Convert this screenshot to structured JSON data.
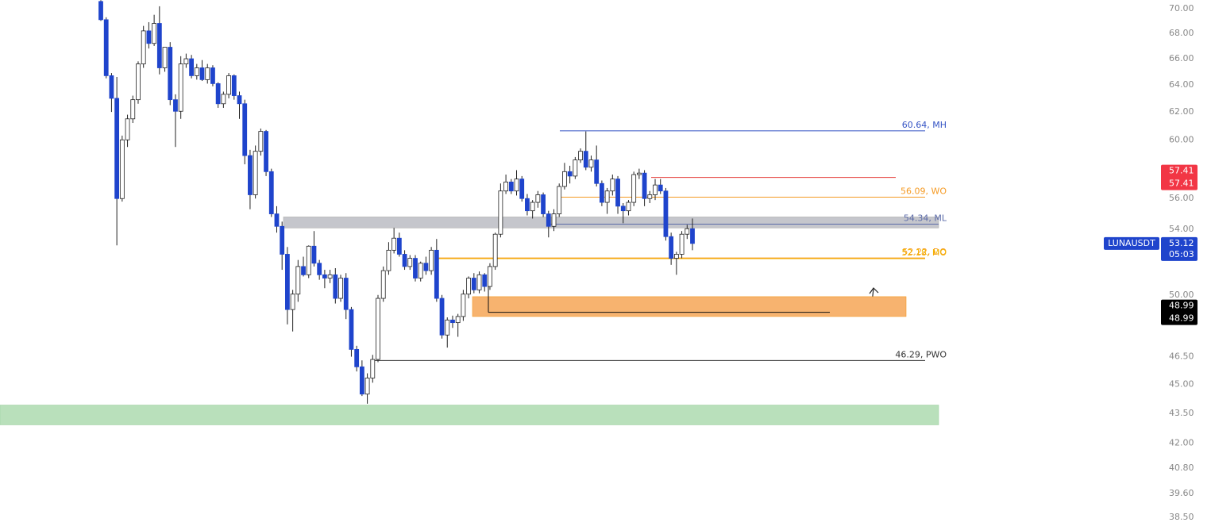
{
  "chart_data": {
    "type": "candlestick",
    "log_scale": true,
    "ylim": [
      37.93,
      70.72
    ],
    "yticks": [
      {
        "value": 70,
        "label": "70.00"
      },
      {
        "value": 68,
        "label": "68.00"
      },
      {
        "value": 66,
        "label": "66.00"
      },
      {
        "value": 64,
        "label": "64.00"
      },
      {
        "value": 62,
        "label": "62.00"
      },
      {
        "value": 60,
        "label": "60.00"
      },
      {
        "value": 56,
        "label": "56.00"
      },
      {
        "value": 54,
        "label": "54.00"
      },
      {
        "value": 50,
        "label": "50.00"
      },
      {
        "value": 46.5,
        "label": "46.50"
      },
      {
        "value": 45,
        "label": "45.00"
      },
      {
        "value": 43.5,
        "label": "43.50"
      },
      {
        "value": 42,
        "label": "42.00"
      },
      {
        "value": 40.8,
        "label": "40.80"
      },
      {
        "value": 39.6,
        "label": "39.60"
      },
      {
        "value": 38.5,
        "label": "38.50"
      }
    ],
    "up_color": "#ffffff",
    "down_color": "#1f44cc",
    "open": [
      70.6,
      69.1,
      64.7,
      63.0,
      56.0,
      60.0,
      61.5,
      62.9,
      65.6,
      68.2,
      67.2,
      68.8,
      65.3,
      66.9,
      62.9,
      62.05,
      65.6,
      66.0,
      64.7,
      65.3,
      64.4,
      65.3,
      64.1,
      62.6,
      63.3,
      64.7,
      63.2,
      62.6,
      58.9,
      56.25,
      59.2,
      60.6,
      57.8,
      55.0,
      54.2,
      52.45,
      49.15,
      50.05,
      51.7,
      51.2,
      52.95,
      51.9,
      51.2,
      51.0,
      51.2,
      49.8,
      51.0,
      49.15,
      46.9,
      45.95,
      44.5,
      45.35,
      46.35,
      49.8,
      51.45,
      52.7,
      53.45,
      52.45,
      51.7,
      52.2,
      51.0,
      51.9,
      51.45,
      52.7,
      49.8,
      47.7,
      48.55,
      48.4,
      48.75,
      50.05,
      51.0,
      50.3,
      51.2,
      50.5,
      51.7,
      53.7,
      56.5,
      57.1,
      56.5,
      57.3,
      56.0,
      55.2,
      55.75,
      56.25,
      55.0,
      54.2,
      55.0,
      56.8,
      57.8,
      57.5,
      58.6,
      59.2,
      58.1,
      58.6,
      57.0,
      55.75,
      56.5,
      57.3,
      55.5,
      55.2,
      55.75,
      57.6,
      57.7,
      56.0,
      56.25,
      56.9,
      56.5,
      53.55,
      52.2,
      52.45,
      53.7,
      54.05
    ],
    "high": [
      70.7,
      69.3,
      64.9,
      64.6,
      60.3,
      61.8,
      63.2,
      65.8,
      68.6,
      68.9,
      69.5,
      70.2,
      66.9,
      67.3,
      63.3,
      66.2,
      66.4,
      66.3,
      65.6,
      65.9,
      65.6,
      65.5,
      64.2,
      63.5,
      64.9,
      64.8,
      63.5,
      62.9,
      59.3,
      59.6,
      60.8,
      60.7,
      58.0,
      55.5,
      54.5,
      52.9,
      50.3,
      52.1,
      52.3,
      53.0,
      53.9,
      52.1,
      51.5,
      51.5,
      51.6,
      51.2,
      51.3,
      49.3,
      47.1,
      46.3,
      45.6,
      46.6,
      50.0,
      51.7,
      53.2,
      54.1,
      53.8,
      52.7,
      52.4,
      52.4,
      52.0,
      52.3,
      52.9,
      53.4,
      50.0,
      48.7,
      48.8,
      48.9,
      50.3,
      51.1,
      51.3,
      51.4,
      51.3,
      51.9,
      53.8,
      57.0,
      57.6,
      57.3,
      57.9,
      57.5,
      56.3,
      55.9,
      56.5,
      56.4,
      55.2,
      55.3,
      57.0,
      58.4,
      58.2,
      58.8,
      59.4,
      60.6,
      58.9,
      59.6,
      57.2,
      56.7,
      57.6,
      57.5,
      55.7,
      55.9,
      57.8,
      58.0,
      57.9,
      56.5,
      57.3,
      57.3,
      56.7,
      53.8,
      52.6,
      53.9,
      54.3,
      54.7
    ],
    "low": [
      69.0,
      64.5,
      62.0,
      53.0,
      55.8,
      59.5,
      61.2,
      62.6,
      65.3,
      66.8,
      67.0,
      64.8,
      65.0,
      62.5,
      59.5,
      61.5,
      65.3,
      64.5,
      64.4,
      64.3,
      64.1,
      63.9,
      62.3,
      62.3,
      63.0,
      62.9,
      61.5,
      58.3,
      55.3,
      56.0,
      58.9,
      57.5,
      54.8,
      53.8,
      51.5,
      48.3,
      47.9,
      49.6,
      51.1,
      51.0,
      51.7,
      50.9,
      50.4,
      50.7,
      49.5,
      49.6,
      48.6,
      46.5,
      45.7,
      44.4,
      44.0,
      45.1,
      46.2,
      49.6,
      51.2,
      52.5,
      52.3,
      51.5,
      51.5,
      50.8,
      50.8,
      51.2,
      51.2,
      49.6,
      47.5,
      47.0,
      48.1,
      47.6,
      48.5,
      49.8,
      50.1,
      50.1,
      50.2,
      50.3,
      51.5,
      53.5,
      56.3,
      56.3,
      56.2,
      55.8,
      54.9,
      54.7,
      55.4,
      54.8,
      53.5,
      53.9,
      54.8,
      56.6,
      57.0,
      57.3,
      58.4,
      57.9,
      57.8,
      56.8,
      55.5,
      55.0,
      56.2,
      55.0,
      54.4,
      54.9,
      55.5,
      57.3,
      55.5,
      55.7,
      55.9,
      56.3,
      53.3,
      51.8,
      51.2,
      52.2,
      53.4,
      52.7
    ],
    "close": [
      69.1,
      64.7,
      63.0,
      56.0,
      60.0,
      61.5,
      62.9,
      65.6,
      68.2,
      67.2,
      68.8,
      65.3,
      66.9,
      62.9,
      62.05,
      65.6,
      66.0,
      64.7,
      65.3,
      64.4,
      65.3,
      64.1,
      62.6,
      63.3,
      64.7,
      63.2,
      62.6,
      58.9,
      56.25,
      59.2,
      60.6,
      57.8,
      55.0,
      54.2,
      52.45,
      49.15,
      50.05,
      51.7,
      51.2,
      52.95,
      51.9,
      51.2,
      51.0,
      51.2,
      49.8,
      51.0,
      49.15,
      46.9,
      45.95,
      44.5,
      45.35,
      46.35,
      49.8,
      51.45,
      52.7,
      53.45,
      52.45,
      51.7,
      52.2,
      51.0,
      51.9,
      51.45,
      52.7,
      49.8,
      47.7,
      48.55,
      48.4,
      48.75,
      50.05,
      51.0,
      50.3,
      51.2,
      50.5,
      51.7,
      53.7,
      56.5,
      57.1,
      56.5,
      57.3,
      56.0,
      55.2,
      55.75,
      56.25,
      55.0,
      54.2,
      55.0,
      56.8,
      57.8,
      57.5,
      58.6,
      59.2,
      58.1,
      58.6,
      57.0,
      55.75,
      56.5,
      57.3,
      55.5,
      55.2,
      55.75,
      57.6,
      57.7,
      56.0,
      56.25,
      56.9,
      56.5,
      53.55,
      52.2,
      52.45,
      53.7,
      54.05,
      53.12
    ],
    "zones": [
      {
        "low": 54.1,
        "high": 54.8,
        "color": "#c5c6cc"
      },
      {
        "low": 48.75,
        "high": 49.9,
        "color": "#f7b36f"
      },
      {
        "low": 42.92,
        "high": 43.93,
        "color": "#b9e0bb"
      }
    ],
    "levels": [
      {
        "value": 60.64,
        "label": "60.64, MH",
        "color": "#3554c4"
      },
      {
        "value": 57.41,
        "color": "#e53935"
      },
      {
        "value": 56.09,
        "label": "56.09, WO",
        "color": "#f59a23"
      },
      {
        "value": 54.34,
        "label": "54.34, ML",
        "color": "#5b6aa8"
      },
      {
        "value": 52.22,
        "label": "52.22, DO",
        "color": "#f59a23"
      },
      {
        "value": 52.18,
        "label": "52.18, MO",
        "color": "#f5b400"
      },
      {
        "value": 46.29,
        "label": "46.29, PWO",
        "color": "#333333"
      },
      {
        "value": 48.99,
        "color": "#111111"
      }
    ],
    "symbol": "LUNAUSDT",
    "last_price": 53.12,
    "countdown": "05:03",
    "price_badges": [
      {
        "value": 57.41,
        "color": "#f23645"
      },
      {
        "value": 48.99,
        "color": "#000000"
      }
    ]
  }
}
